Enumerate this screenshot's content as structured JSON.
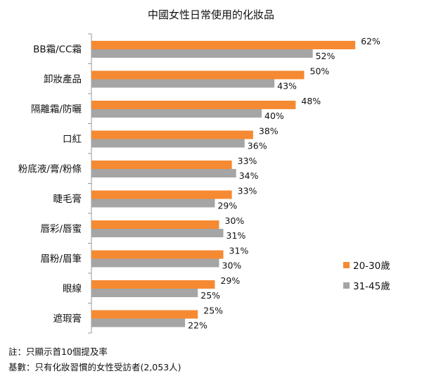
{
  "chart_data": {
    "type": "bar",
    "orientation": "horizontal",
    "title": "中國女性日常使用的化妝品",
    "categories": [
      "BB霜/CC霜",
      "卸妝產品",
      "隔離霜/防曬",
      "口紅",
      "粉底液/膏/粉條",
      "睫毛膏",
      "唇彩/唇蜜",
      "眉粉/眉筆",
      "眼線",
      "遮瑕膏"
    ],
    "series": [
      {
        "name": "20-30歲",
        "color": "#f58a32",
        "values": [
          62,
          50,
          48,
          38,
          33,
          33,
          30,
          31,
          29,
          25
        ]
      },
      {
        "name": "31-45歲",
        "color": "#a5a5a5",
        "values": [
          52,
          43,
          40,
          36,
          34,
          29,
          31,
          30,
          25,
          22
        ]
      }
    ],
    "value_suffix": "%",
    "xlim": [
      0,
      70
    ],
    "grid": false,
    "legend_placement": "right"
  },
  "notes": [
    "註：只顯示首10個提及率",
    "基數：只有化妝習慣的女性受訪者(2,053人)"
  ]
}
